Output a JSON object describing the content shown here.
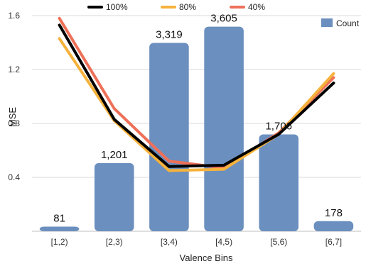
{
  "chart_data": {
    "type": "bar",
    "categories": [
      "[1,2)",
      "[2,3)",
      "[3,4)",
      "[4,5)",
      "[5,6)",
      "[6,7]"
    ],
    "bar_series": {
      "name": "Count",
      "values": [
        81,
        1201,
        3319,
        3605,
        1706,
        178
      ],
      "labels": [
        "81",
        "1,201",
        "3,319",
        "3,605",
        "1,706",
        "178"
      ],
      "color": "#6b8fbf"
    },
    "line_series": [
      {
        "name": "100%",
        "values": [
          1.53,
          0.83,
          0.48,
          0.49,
          0.72,
          1.1
        ],
        "color": "#000000"
      },
      {
        "name": "80%",
        "values": [
          1.43,
          0.82,
          0.45,
          0.46,
          0.72,
          1.17
        ],
        "color": "#f5b23c"
      },
      {
        "name": "40%",
        "values": [
          1.58,
          0.91,
          0.52,
          0.47,
          0.73,
          1.14
        ],
        "color": "#ee7058"
      }
    ],
    "xlabel": "Valence Bins",
    "ylabel": "MSE",
    "yticks": [
      "0.4",
      "0.8",
      "1.2",
      "1.6"
    ],
    "ylim": [
      0,
      1.6
    ],
    "grid": true,
    "legend_position": "top"
  }
}
